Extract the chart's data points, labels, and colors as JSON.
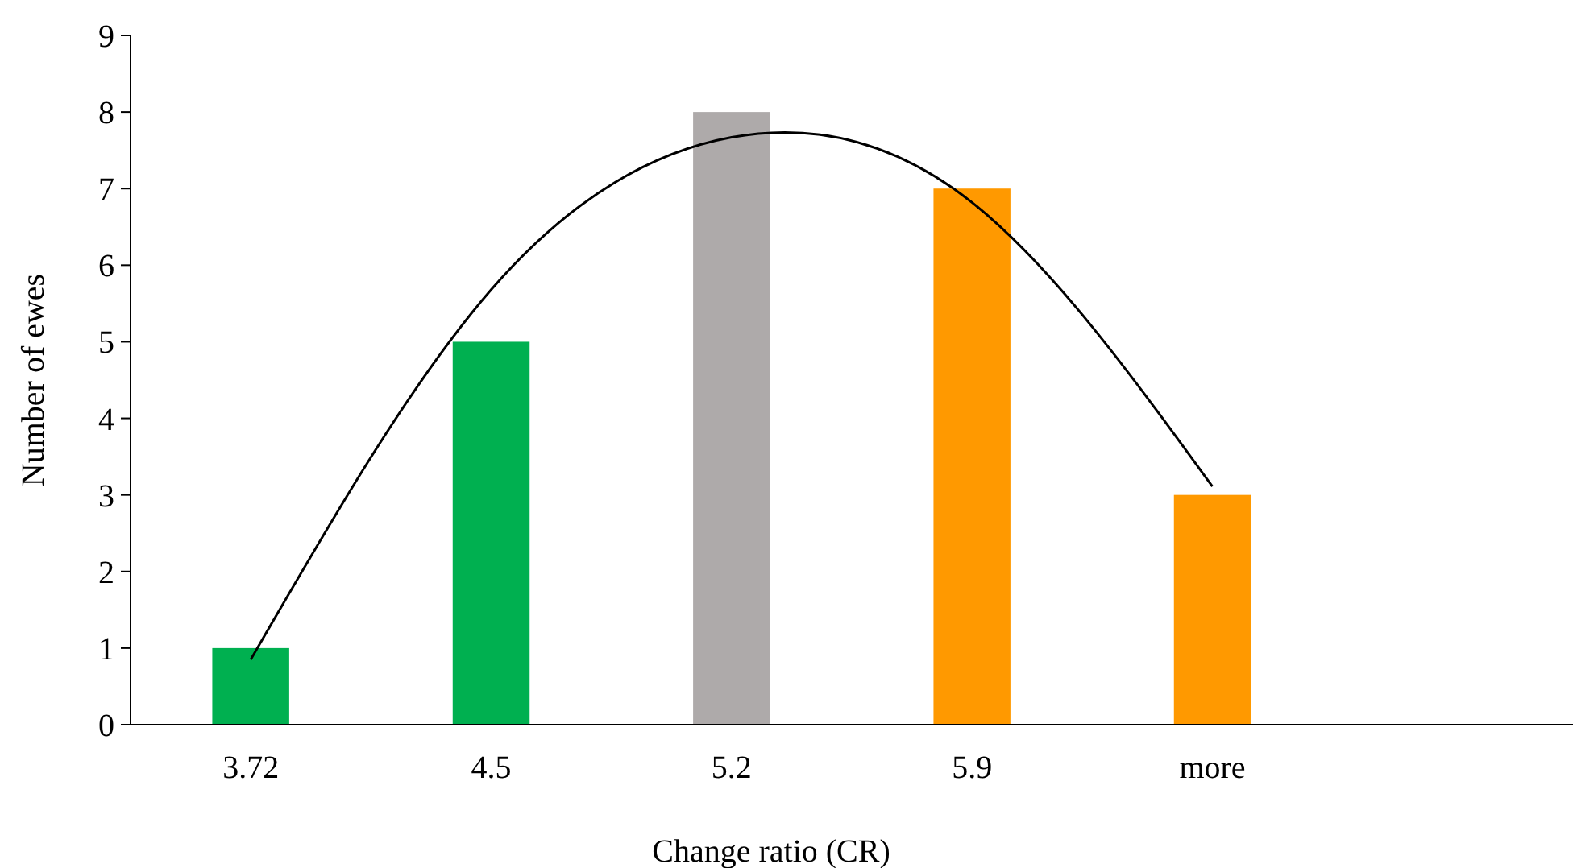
{
  "chart_data": {
    "type": "bar",
    "xlabel": "Change ratio (CR)",
    "ylabel": "Number of ewes",
    "categories": [
      "3.72",
      "4.5",
      "5.2",
      "5.9",
      "more",
      null
    ],
    "series": [
      {
        "colors": [
          "#00b050",
          "#00b050",
          "#aeaaaa",
          "#ff9900",
          "#ff9900",
          null
        ],
        "values": [
          1,
          5,
          8,
          7,
          3,
          null
        ]
      },
      {
        "type": "line",
        "color": "#000000",
        "x": [
          "3.72",
          "4.5",
          "5.2",
          "5.9",
          "more"
        ],
        "values": [
          0.85,
          5.68,
          7.67,
          6.82,
          3.11
        ]
      }
    ],
    "ylim": [
      0,
      9
    ],
    "yticks": [
      0,
      1,
      2,
      3,
      4,
      5,
      6,
      7,
      8,
      9
    ],
    "grid": false
  }
}
